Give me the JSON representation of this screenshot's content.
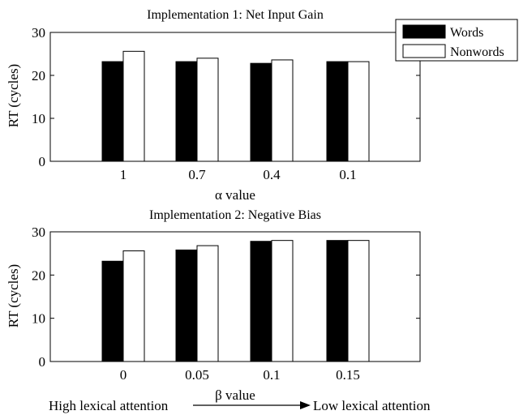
{
  "chart_data": [
    {
      "type": "bar",
      "title": "Implementation 1: Net Input Gain",
      "xlabel": "α value",
      "ylabel": "RT (cycles)",
      "categories": [
        "1",
        "0.7",
        "0.4",
        "0.1"
      ],
      "yticks": [
        "0",
        "10",
        "20",
        "30"
      ],
      "ylim": [
        0,
        30
      ],
      "grid": false,
      "series": [
        {
          "name": "Words",
          "color": "#000000",
          "values": [
            23.2,
            23.2,
            22.8,
            23.2
          ]
        },
        {
          "name": "Nonwords",
          "color": "#ffffff",
          "values": [
            25.6,
            24.0,
            23.6,
            23.2
          ]
        }
      ]
    },
    {
      "type": "bar",
      "title": "Implementation 2: Negative Bias",
      "xlabel": "β value",
      "ylabel": "RT (cycles)",
      "categories": [
        "0",
        "0.05",
        "0.1",
        "0.15"
      ],
      "yticks": [
        "0",
        "10",
        "20",
        "30"
      ],
      "ylim": [
        0,
        30
      ],
      "grid": false,
      "series": [
        {
          "name": "Words",
          "color": "#000000",
          "values": [
            23.2,
            25.8,
            27.8,
            28.0
          ]
        },
        {
          "name": "Nonwords",
          "color": "#ffffff",
          "values": [
            25.6,
            26.8,
            28.0,
            28.0
          ]
        }
      ]
    }
  ],
  "legend": {
    "position": "top-right",
    "items": [
      {
        "label": "Words",
        "color": "#000000"
      },
      {
        "label": "Nonwords",
        "color": "#ffffff"
      }
    ]
  },
  "annotation": {
    "left": "High lexical attention",
    "right": "Low lexical attention"
  }
}
